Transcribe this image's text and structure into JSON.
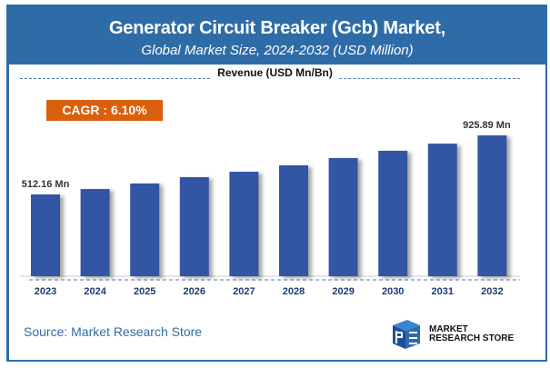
{
  "header": {
    "title": "Generator Circuit Breaker (Gcb) Market,",
    "subtitle": "Global Market Size, 2024-2032 (USD Million)"
  },
  "revenue_label": "Revenue (USD Mn/Bn)",
  "cagr_label": "CAGR : 6.10%",
  "source": "Source: Market Research Store",
  "logo": {
    "line1": "MARKET",
    "line2": "RESEARCH STORE"
  },
  "colors": {
    "header": "#2e6ca7",
    "bar": "#3155a4",
    "cagr": "#d9600c"
  },
  "chart_data": {
    "type": "bar",
    "categories": [
      "2023",
      "2024",
      "2025",
      "2026",
      "2027",
      "2028",
      "2029",
      "2030",
      "2031",
      "2032"
    ],
    "values": [
      512.16,
      550,
      589,
      633,
      671,
      716,
      767,
      818,
      868,
      925.89
    ],
    "data_labels": {
      "2023": "512.16 Mn",
      "2032": "925.89 Mn"
    },
    "grid": false,
    "unit": "USD Million"
  }
}
